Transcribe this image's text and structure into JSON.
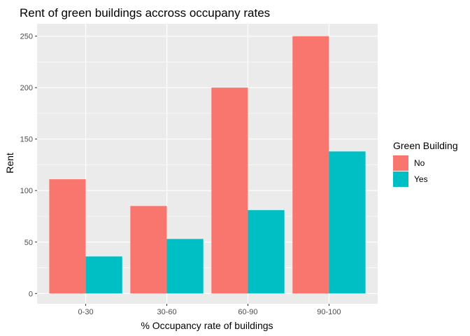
{
  "chart_data": {
    "type": "bar",
    "title": "Rent of green buildings accross occupany rates",
    "xlabel": "% Occupancy rate of buildings",
    "ylabel": "Rent",
    "categories": [
      "0-30",
      "30-60",
      "60-90",
      "90-100"
    ],
    "series": [
      {
        "name": "No",
        "values": [
          111,
          85,
          200,
          250
        ],
        "color": "#F8766D"
      },
      {
        "name": "Yes",
        "values": [
          36,
          53,
          81,
          138
        ],
        "color": "#00BFC4"
      }
    ],
    "ylim": [
      -10,
      262
    ],
    "yticks": [
      0,
      50,
      100,
      150,
      200,
      250
    ],
    "yticks_minor": [
      25,
      75,
      125,
      175,
      225
    ],
    "grid": true,
    "panel_background": "#EBEBEB",
    "grid_color": "#FFFFFF",
    "legend_title": "Green Building",
    "legend_position": "right"
  }
}
